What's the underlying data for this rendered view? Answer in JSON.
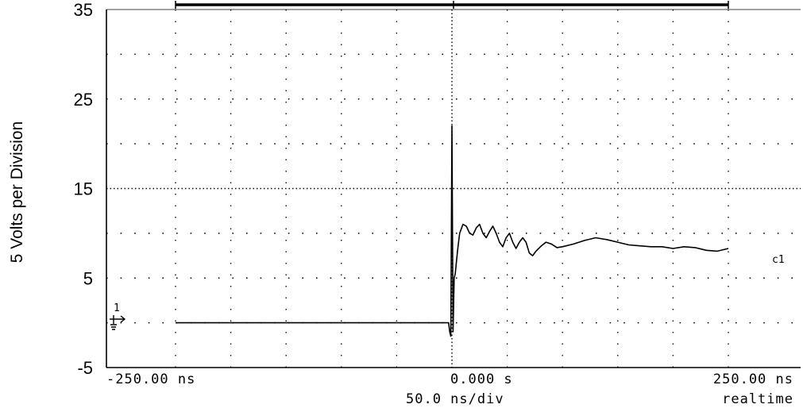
{
  "chart_data": {
    "type": "line",
    "title": "",
    "ylabel": "5 Volts per Division",
    "ylim": [
      -5,
      35
    ],
    "y_ticks": [
      "35",
      "25",
      "15",
      "5",
      "-5"
    ],
    "y_tick_values": [
      35,
      25,
      15,
      5,
      -5
    ],
    "xlim_ns": [
      -250,
      250
    ],
    "x_tick_labels": {
      "left": "-250.00 ns",
      "center": "0.000  s",
      "right": "250.00 ns"
    },
    "timebase": "50.0 ns/div",
    "mode": "realtime",
    "channel_marker": "1",
    "series": [
      {
        "name": "c1",
        "x_ns": [
          -250,
          -200,
          -150,
          -100,
          -50,
          -10,
          -5,
          -3,
          -2,
          -1,
          0,
          1,
          2,
          3,
          5,
          7,
          10,
          13,
          16,
          19,
          22,
          25,
          28,
          31,
          34,
          37,
          40,
          43,
          46,
          49,
          52,
          55,
          58,
          61,
          64,
          67,
          70,
          73,
          76,
          80,
          85,
          90,
          95,
          100,
          110,
          120,
          130,
          140,
          150,
          160,
          170,
          180,
          190,
          200,
          210,
          220,
          230,
          240,
          250
        ],
        "y": [
          0,
          0,
          0,
          0,
          0,
          0,
          0,
          0,
          -1,
          -1.5,
          22,
          -1,
          5,
          5.5,
          8,
          10,
          11,
          10.8,
          10,
          9.8,
          10.6,
          11,
          10,
          9.5,
          10.2,
          10.8,
          10,
          9,
          8.5,
          9.5,
          10,
          9,
          8.3,
          9,
          9.5,
          9,
          7.8,
          7.5,
          8,
          8.5,
          9,
          8.8,
          8.4,
          8.5,
          8.8,
          9.2,
          9.5,
          9.3,
          9,
          8.7,
          8.6,
          8.5,
          8.5,
          8.3,
          8.5,
          8.4,
          8.1,
          8,
          8.3
        ]
      }
    ]
  }
}
